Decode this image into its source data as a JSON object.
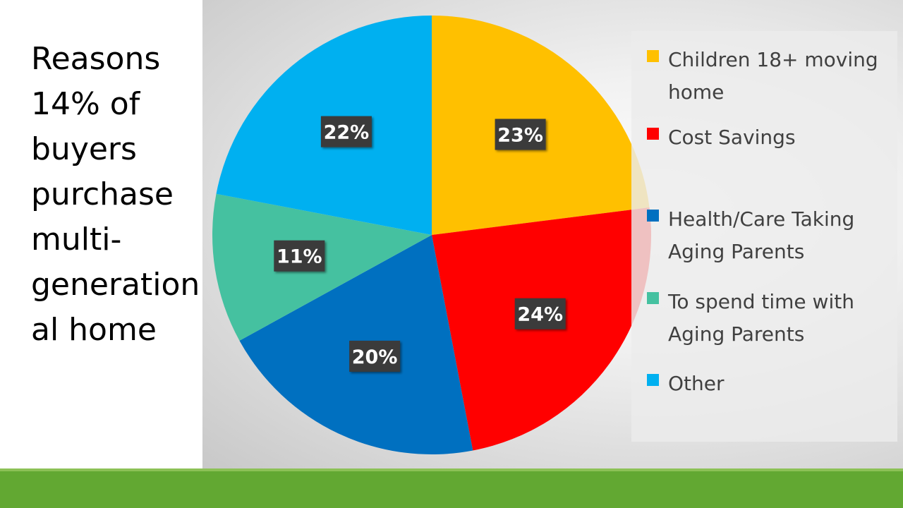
{
  "slide": {
    "title_lines": [
      "Reasons",
      "14% of",
      "buyers",
      "purchase",
      "multi-",
      "generation",
      "al home"
    ]
  },
  "chart_data": {
    "type": "pie",
    "title": "",
    "categories": [
      "Children 18+ moving home",
      "Cost Savings",
      "Health/Care Taking Aging Parents",
      "To spend time with Aging Parents",
      "Other"
    ],
    "values": [
      23,
      24,
      20,
      11,
      22
    ],
    "value_labels": [
      "23%",
      "24%",
      "20%",
      "11%",
      "22%"
    ],
    "colors": [
      "#ffc000",
      "#ff0000",
      "#0070c0",
      "#45c1a0",
      "#00b0f0"
    ],
    "start": "12 o'clock, clockwise",
    "legend_position": "right",
    "legend_lines": [
      [
        "Children 18+ moving",
        "home"
      ],
      [
        "Cost Savings"
      ],
      [
        "Health/Care Taking",
        "Aging Parents"
      ],
      [
        "To spend time with",
        "Aging Parents"
      ],
      [
        "Other"
      ]
    ],
    "label_background": "#3a3a3a",
    "label_color": "#ffffff"
  },
  "footer": {
    "color": "#62a832"
  }
}
